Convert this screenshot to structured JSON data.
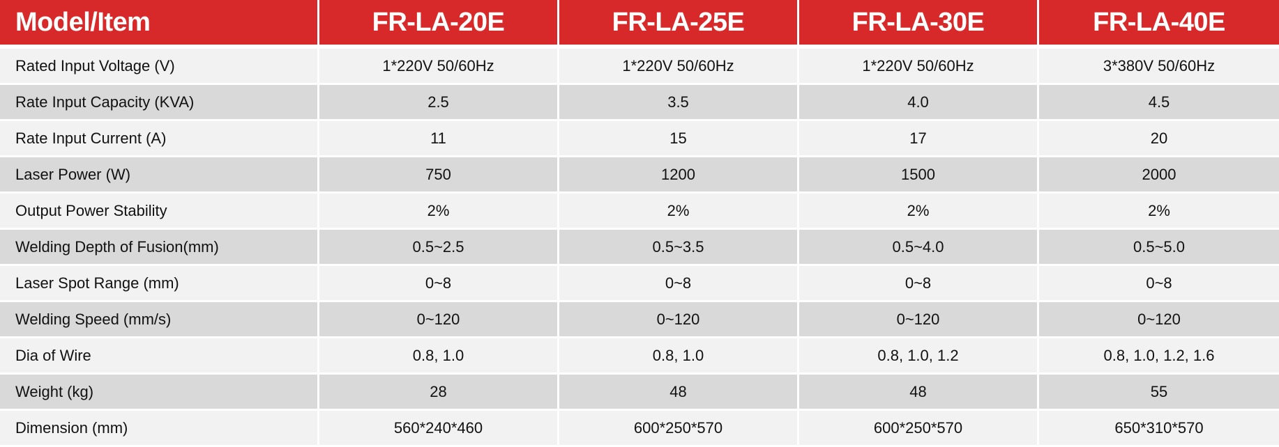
{
  "table": {
    "header": {
      "label": "Model/Item",
      "models": [
        "FR-LA-20E",
        "FR-LA-25E",
        "FR-LA-30E",
        "FR-LA-40E"
      ]
    },
    "rows": [
      {
        "label": "Rated Input Voltage (V)",
        "values": [
          "1*220V 50/60Hz",
          "1*220V 50/60Hz",
          "1*220V 50/60Hz",
          "3*380V 50/60Hz"
        ]
      },
      {
        "label": "Rate Input Capacity (KVA)",
        "values": [
          "2.5",
          "3.5",
          "4.0",
          "4.5"
        ]
      },
      {
        "label": "Rate Input Current (A)",
        "values": [
          "11",
          "15",
          "17",
          "20"
        ]
      },
      {
        "label": "Laser Power (W)",
        "values": [
          "750",
          "1200",
          "1500",
          "2000"
        ]
      },
      {
        "label": "Output Power Stability",
        "values": [
          "2%",
          "2%",
          "2%",
          "2%"
        ]
      },
      {
        "label": "Welding Depth of Fusion(mm)",
        "values": [
          "0.5~2.5",
          "0.5~3.5",
          "0.5~4.0",
          "0.5~5.0"
        ]
      },
      {
        "label": "Laser Spot Range (mm)",
        "values": [
          "0~8",
          "0~8",
          "0~8",
          "0~8"
        ]
      },
      {
        "label": "Welding Speed (mm/s)",
        "values": [
          "0~120",
          "0~120",
          "0~120",
          "0~120"
        ]
      },
      {
        "label": "Dia of Wire",
        "values": [
          "0.8, 1.0",
          "0.8, 1.0",
          "0.8, 1.0, 1.2",
          "0.8, 1.0, 1.2, 1.6"
        ]
      },
      {
        "label": "Weight (kg)",
        "values": [
          "28",
          "48",
          "48",
          "55"
        ]
      },
      {
        "label": "Dimension (mm)",
        "values": [
          "560*240*460",
          "600*250*570",
          "600*250*570",
          "650*310*570"
        ]
      }
    ]
  },
  "colors": {
    "header_bg": "#d8292a",
    "header_text": "#ffffff",
    "row_light": "#f2f2f2",
    "row_dark": "#d9d9d9"
  }
}
